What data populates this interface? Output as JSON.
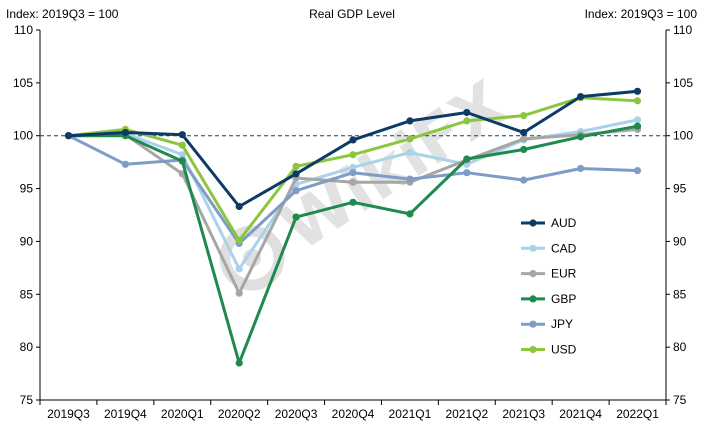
{
  "chart_data": {
    "type": "line",
    "title": "Real GDP Level",
    "y_left_label": "Index: 2019Q3 = 100",
    "y_right_label": "Index: 2019Q3 = 100",
    "categories": [
      "2019Q3",
      "2019Q4",
      "2020Q1",
      "2020Q2",
      "2020Q3",
      "2020Q4",
      "2021Q1",
      "2021Q2",
      "2021Q3",
      "2021Q4",
      "2022Q1"
    ],
    "ylim": [
      75,
      110
    ],
    "yticks": [
      75,
      80,
      85,
      90,
      95,
      100,
      105,
      110
    ],
    "reference_line": 100,
    "grid": false,
    "legend_position": "right-inside",
    "series": [
      {
        "name": "AUD",
        "color": "#0d3b66",
        "values": [
          100,
          100.3,
          100.1,
          93.3,
          96.4,
          99.6,
          101.4,
          102.2,
          100.3,
          103.7,
          104.2
        ]
      },
      {
        "name": "CAD",
        "color": "#a9d3ea",
        "values": [
          100,
          100.2,
          98.2,
          87.4,
          95.4,
          97.0,
          98.4,
          97.3,
          99.6,
          100.4,
          101.5
        ]
      },
      {
        "name": "EUR",
        "color": "#a6a6a6",
        "values": [
          100,
          100.1,
          96.4,
          85.1,
          96.0,
          95.6,
          95.6,
          97.7,
          99.7,
          100.1,
          100.6
        ]
      },
      {
        "name": "GBP",
        "color": "#1e8a4c",
        "values": [
          100,
          100.0,
          97.6,
          78.5,
          92.3,
          93.7,
          92.6,
          97.8,
          98.7,
          99.9,
          100.9
        ]
      },
      {
        "name": "JPY",
        "color": "#7f9cc7",
        "values": [
          100,
          97.3,
          97.7,
          89.8,
          94.8,
          96.5,
          95.9,
          96.5,
          95.8,
          96.9,
          96.7
        ]
      },
      {
        "name": "USD",
        "color": "#8cc63f",
        "values": [
          100,
          100.6,
          99.1,
          90.1,
          97.1,
          98.2,
          99.7,
          101.4,
          101.9,
          103.6,
          103.3
        ]
      }
    ]
  },
  "watermark": "WikiFX"
}
